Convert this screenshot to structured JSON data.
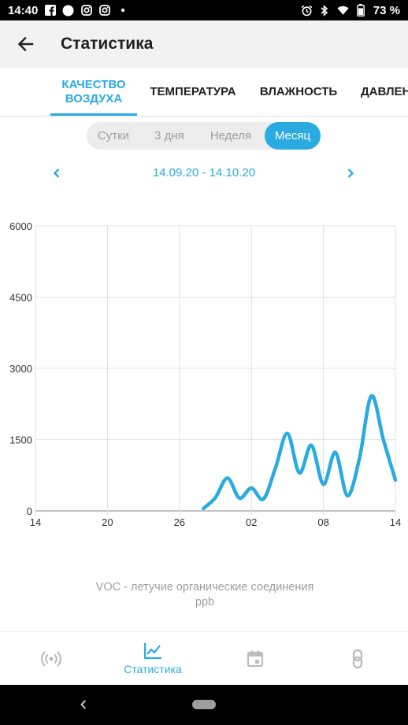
{
  "status_bar": {
    "time": "14:40",
    "battery": "73 %",
    "left_icons": [
      "facebook-icon",
      "circle-notification-icon",
      "instagram-icon",
      "instagram-icon",
      "more-dot-icon"
    ],
    "right_icons": [
      "alarm-icon",
      "bluetooth-icon",
      "wifi-icon",
      "battery-icon"
    ]
  },
  "app_bar": {
    "title": "Статистика",
    "back_icon": "arrow-back-icon"
  },
  "tabs": [
    {
      "label": "КАЧЕСТВО\nВОЗДУХА",
      "active": true
    },
    {
      "label": "ТЕМПЕРАТУРА",
      "active": false
    },
    {
      "label": "ВЛАЖНОСТЬ",
      "active": false
    },
    {
      "label": "ДАВЛЕН",
      "active": false
    }
  ],
  "range_options": [
    {
      "label": "Сутки",
      "active": false
    },
    {
      "label": "3 дня",
      "active": false
    },
    {
      "label": "Неделя",
      "active": false
    },
    {
      "label": "Месяц",
      "active": true
    }
  ],
  "date_range": "14.09.20 - 14.10.20",
  "chart_data": {
    "type": "line",
    "x_tick_labels": [
      "14",
      "20",
      "26",
      "02",
      "08",
      "14"
    ],
    "y_tick_labels": [
      "0",
      "1500",
      "3000",
      "4500",
      "6000"
    ],
    "ylim": [
      0,
      6000
    ],
    "grid": true,
    "x": [
      "2020-09-28",
      "2020-09-29",
      "2020-09-30",
      "2020-10-01",
      "2020-10-02",
      "2020-10-03",
      "2020-10-04",
      "2020-10-05",
      "2020-10-06",
      "2020-10-07",
      "2020-10-08",
      "2020-10-09",
      "2020-10-10",
      "2020-10-11",
      "2020-10-12",
      "2020-10-13",
      "2020-10-14"
    ],
    "series": [
      {
        "color": "#29abe2",
        "values": [
          50,
          280,
          690,
          270,
          480,
          250,
          900,
          1630,
          800,
          1380,
          560,
          1230,
          320,
          1100,
          2420,
          1500,
          650
        ]
      }
    ]
  },
  "legend": {
    "line1": "VOC - летучие органические соединения",
    "line2": "ppb"
  },
  "bottom_nav": [
    {
      "icon": "sensor-broadcast-icon",
      "label": "",
      "active": false
    },
    {
      "icon": "chart-line-icon",
      "label": "Статистика",
      "active": true
    },
    {
      "icon": "calendar-icon",
      "label": "",
      "active": false
    },
    {
      "icon": "link-icon",
      "label": "",
      "active": false
    }
  ],
  "colors": {
    "accent": "#29abe2",
    "app_bar": "#f2f2f2",
    "inactive_icon": "#bdbdbd"
  }
}
